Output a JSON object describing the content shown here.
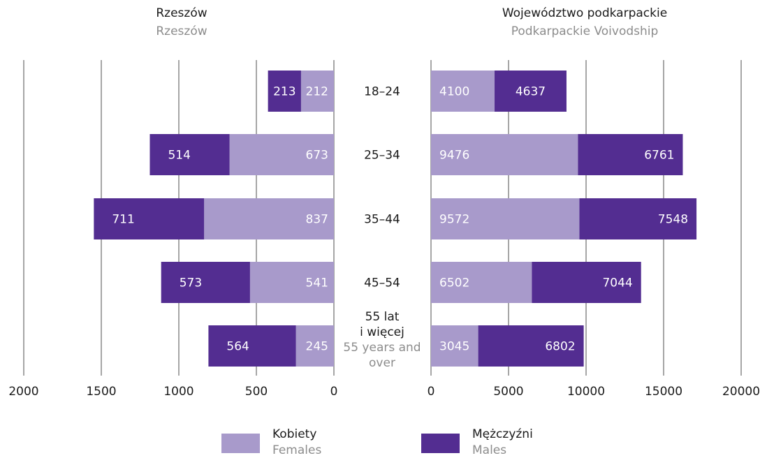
{
  "colors": {
    "females": "#a89acb",
    "males": "#532d91"
  },
  "left_panel": {
    "title": "Rzeszów",
    "subtitle": "Rzeszów"
  },
  "right_panel": {
    "title": "Województwo podkarpackie",
    "subtitle": "Podkarpackie Voivodship"
  },
  "categories": [
    {
      "lines": [
        "18–24"
      ],
      "sub_lines": []
    },
    {
      "lines": [
        "25–34"
      ],
      "sub_lines": []
    },
    {
      "lines": [
        "35–44"
      ],
      "sub_lines": []
    },
    {
      "lines": [
        "45–54"
      ],
      "sub_lines": []
    },
    {
      "lines": [
        "55 lat",
        "i więcej"
      ],
      "sub_lines": [
        "55 years and",
        "over"
      ]
    }
  ],
  "legend": {
    "females": {
      "label": "Kobiety",
      "sublabel": "Females"
    },
    "males": {
      "label": "Mężczyźni",
      "sublabel": "Males"
    }
  },
  "chart_data": [
    {
      "type": "bar",
      "orientation": "horizontal-stacked-reversed",
      "title": "Rzeszów",
      "subtitle": "Rzeszów",
      "categories": [
        "18–24",
        "25–34",
        "35–44",
        "45–54",
        "55 lat i więcej"
      ],
      "series": [
        {
          "name": "Kobiety",
          "values": [
            212,
            673,
            837,
            541,
            245
          ]
        },
        {
          "name": "Mężczyźni",
          "values": [
            213,
            514,
            711,
            573,
            564
          ]
        }
      ],
      "xlim": [
        0,
        2000
      ],
      "ticks": [
        0,
        500,
        1000,
        1500,
        2000
      ],
      "grid": true
    },
    {
      "type": "bar",
      "orientation": "horizontal-stacked",
      "title": "Województwo podkarpackie",
      "subtitle": "Podkarpackie Voivodship",
      "categories": [
        "18–24",
        "25–34",
        "35–44",
        "45–54",
        "55 lat i więcej"
      ],
      "series": [
        {
          "name": "Kobiety",
          "values": [
            4100,
            9476,
            9572,
            6502,
            3045
          ]
        },
        {
          "name": "Mężczyźni",
          "values": [
            4637,
            6761,
            7548,
            7044,
            6802
          ]
        }
      ],
      "xlim": [
        0,
        20000
      ],
      "ticks": [
        0,
        5000,
        10000,
        15000,
        20000
      ],
      "grid": true
    }
  ]
}
